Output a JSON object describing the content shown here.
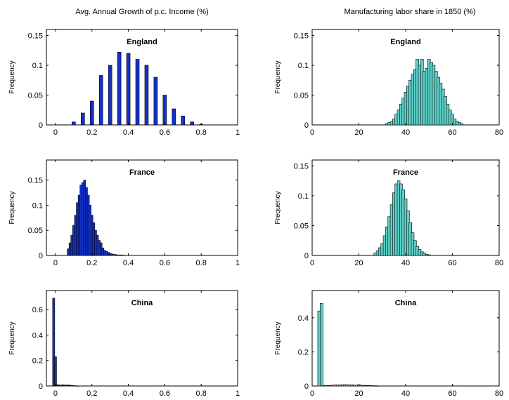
{
  "titles": {
    "left": "Avg. Annual Growth of p.c. Income (%)",
    "right": "Manufacturing labor share in 1850 (%)"
  },
  "colors": {
    "left_bars": "#1432c8",
    "right_bars": "#5fd0c8",
    "bar_edge": "#000000",
    "axes": "#000000",
    "background": "#ffffff"
  },
  "chart_data": [
    {
      "type": "bar",
      "panel": "England",
      "ylabel": "Frequency",
      "xlim": [
        -0.05,
        1.0
      ],
      "ylim": [
        0,
        0.16
      ],
      "xticks": [
        "0",
        "0.2",
        "0.4",
        "0.6",
        "0.8",
        "1"
      ],
      "yticks": [
        "0",
        "0.05",
        "0.1",
        "0.15"
      ],
      "x": [
        0.075,
        0.1,
        0.125,
        0.15,
        0.175,
        0.2,
        0.225,
        0.25,
        0.275,
        0.3,
        0.325,
        0.35,
        0.375,
        0.4,
        0.425,
        0.45,
        0.475,
        0.5,
        0.525,
        0.55,
        0.575,
        0.6,
        0.625,
        0.65,
        0.675,
        0.7,
        0.725,
        0.75,
        0.775,
        0.8
      ],
      "values": [
        0.0,
        0.005,
        0.0,
        0.02,
        0.0,
        0.04,
        0.0,
        0.083,
        0.0,
        0.1,
        0.0,
        0.122,
        0.0,
        0.12,
        0.0,
        0.11,
        0.0,
        0.1,
        0.0,
        0.08,
        0.0,
        0.05,
        0.0,
        0.027,
        0.0,
        0.015,
        0.0,
        0.005,
        0.0,
        0.001
      ]
    },
    {
      "type": "bar",
      "panel": "England",
      "ylabel": "Frequency",
      "xlim": [
        0,
        80
      ],
      "ylim": [
        0,
        0.16
      ],
      "xticks": [
        "0",
        "20",
        "40",
        "60",
        "80"
      ],
      "yticks": [
        "0",
        "0.05",
        "0.1",
        "0.15"
      ],
      "x": [
        32,
        33,
        34,
        35,
        36,
        37,
        38,
        39,
        40,
        41,
        42,
        43,
        44,
        45,
        46,
        47,
        48,
        49,
        50,
        51,
        52,
        53,
        54,
        55,
        56,
        57,
        58,
        59,
        60,
        61,
        62,
        63,
        64
      ],
      "values": [
        0.002,
        0.004,
        0.006,
        0.01,
        0.018,
        0.025,
        0.035,
        0.045,
        0.055,
        0.065,
        0.075,
        0.085,
        0.093,
        0.11,
        0.1,
        0.11,
        0.09,
        0.095,
        0.11,
        0.105,
        0.1,
        0.09,
        0.08,
        0.07,
        0.06,
        0.048,
        0.035,
        0.025,
        0.018,
        0.01,
        0.006,
        0.004,
        0.002
      ]
    },
    {
      "type": "bar",
      "panel": "France",
      "ylabel": "Frequency",
      "xlim": [
        -0.05,
        1.0
      ],
      "ylim": [
        0,
        0.19
      ],
      "xticks": [
        "0",
        "0.2",
        "0.4",
        "0.6",
        "0.8",
        "1"
      ],
      "yticks": [
        "0",
        "0.05",
        "0.1",
        "0.15"
      ],
      "x": [
        0.07,
        0.08,
        0.09,
        0.1,
        0.11,
        0.12,
        0.13,
        0.14,
        0.15,
        0.16,
        0.17,
        0.18,
        0.19,
        0.2,
        0.21,
        0.22,
        0.23,
        0.24,
        0.25,
        0.26,
        0.27,
        0.28,
        0.29,
        0.3,
        0.31,
        0.32,
        0.33,
        0.34,
        0.35,
        0.36,
        0.37
      ],
      "values": [
        0.013,
        0.025,
        0.04,
        0.06,
        0.08,
        0.105,
        0.12,
        0.14,
        0.145,
        0.15,
        0.135,
        0.12,
        0.1,
        0.08,
        0.065,
        0.05,
        0.04,
        0.03,
        0.025,
        0.015,
        0.01,
        0.008,
        0.006,
        0.004,
        0.003,
        0.002,
        0.002,
        0.001,
        0.001,
        0.001,
        0.001
      ]
    },
    {
      "type": "bar",
      "panel": "France",
      "ylabel": "Frequency",
      "xlim": [
        0,
        80
      ],
      "ylim": [
        0,
        0.16
      ],
      "xticks": [
        "0",
        "20",
        "40",
        "60",
        "80"
      ],
      "yticks": [
        "0",
        "0.05",
        "0.1",
        "0.15"
      ],
      "x": [
        27,
        28,
        29,
        30,
        31,
        32,
        33,
        34,
        35,
        36,
        37,
        38,
        39,
        40,
        41,
        42,
        43,
        44,
        45,
        46,
        47,
        48,
        49,
        50
      ],
      "values": [
        0.004,
        0.008,
        0.013,
        0.02,
        0.033,
        0.048,
        0.065,
        0.085,
        0.105,
        0.12,
        0.125,
        0.12,
        0.11,
        0.095,
        0.075,
        0.055,
        0.038,
        0.025,
        0.015,
        0.01,
        0.006,
        0.004,
        0.002,
        0.001
      ]
    },
    {
      "type": "bar",
      "panel": "China",
      "ylabel": "Frequency",
      "xlim": [
        -0.05,
        1.0
      ],
      "ylim": [
        0,
        0.75
      ],
      "xticks": [
        "0",
        "0.2",
        "0.4",
        "0.6",
        "0.8",
        "1"
      ],
      "yticks": [
        "0",
        "0.2",
        "0.4",
        "0.6"
      ],
      "x": [
        -0.01,
        0.0,
        0.01,
        0.02,
        0.03,
        0.04,
        0.05,
        0.06,
        0.07,
        0.08,
        0.09,
        0.1,
        0.11,
        0.12
      ],
      "values": [
        0.69,
        0.23,
        0.01,
        0.008,
        0.006,
        0.009,
        0.008,
        0.007,
        0.008,
        0.006,
        0.004,
        0.003,
        0.002,
        0.001
      ]
    },
    {
      "type": "bar",
      "panel": "China",
      "ylabel": "Frequency",
      "xlim": [
        0,
        80
      ],
      "ylim": [
        0,
        0.56
      ],
      "xticks": [
        "0",
        "20",
        "40",
        "60",
        "80"
      ],
      "yticks": [
        "0",
        "0.2",
        "0.4"
      ],
      "x": [
        3,
        4,
        5,
        6,
        7,
        8,
        9,
        10,
        11,
        12,
        13,
        14,
        15,
        16,
        17,
        18,
        19,
        20,
        21,
        22,
        23,
        24,
        25,
        26,
        27,
        28
      ],
      "values": [
        0.44,
        0.485,
        0.002,
        0.002,
        0.003,
        0.004,
        0.005,
        0.006,
        0.005,
        0.007,
        0.006,
        0.008,
        0.007,
        0.006,
        0.007,
        0.005,
        0.005,
        0.006,
        0.004,
        0.004,
        0.003,
        0.003,
        0.002,
        0.002,
        0.001,
        0.001
      ]
    }
  ]
}
